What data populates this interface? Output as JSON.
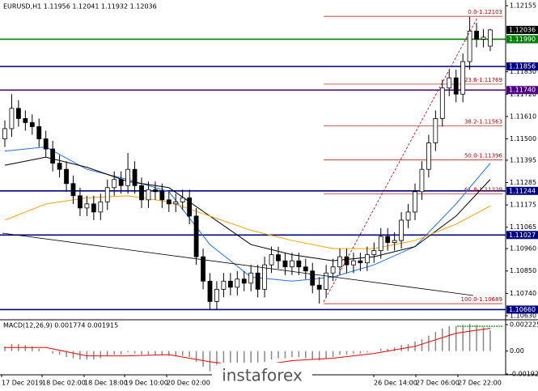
{
  "chart_data": {
    "type": "candlestick",
    "header": "EURUSD,H1 1.11956 1.12041 1.11932 1.12036",
    "ylim": [
      1.1061,
      1.12183
    ],
    "yticks": [
      1.12155,
      {
        "value": 1.1183,
        "label": "1.11830"
      },
      {
        "value": 1.1172,
        "label": "1.11720"
      },
      {
        "value": 1.1161,
        "label": "1.11610"
      },
      {
        "value": 1.115,
        "label": "1.11500"
      },
      1.11395,
      1.11285,
      1.11175,
      1.11065,
      {
        "value": 1.1096,
        "label": "1.10960"
      },
      {
        "value": 1.1085,
        "label": "1.10850"
      },
      {
        "value": 1.1074,
        "label": "1.10740"
      },
      {
        "value": 1.1063,
        "label": "1.10630"
      }
    ],
    "xlabels": [
      "17 Dec 2019",
      "18 Dec 02:00",
      "18 Dec 18:00",
      "19 Dec 10:00",
      "20 Dec 02:00",
      "26 Dec 14:00",
      "27 Dec 06:00",
      "27 Dec 22:00"
    ],
    "open": [
      1.115,
      1.1155,
      1.1165,
      1.116,
      1.1158,
      1.1156,
      1.115,
      1.1145,
      1.1138,
      1.1135,
      1.1128,
      1.1122,
      1.1116,
      1.1118,
      1.1114,
      1.1119,
      1.1126,
      1.113,
      1.1127,
      1.1135,
      1.1127,
      1.112,
      1.1125,
      1.1124,
      1.112,
      1.1118,
      1.1119,
      1.1121,
      1.1112,
      1.1092,
      1.108,
      1.107,
      1.1076,
      1.108,
      1.1077,
      1.1081,
      1.1079,
      1.1084,
      1.1076,
      1.1088,
      1.1093,
      1.109,
      1.1087,
      1.109,
      1.1087,
      1.1085,
      1.1078,
      1.1076,
      1.1084,
      1.1087,
      1.1092,
      1.1088,
      1.109,
      1.1089,
      1.1093,
      1.1095,
      1.1102,
      1.1099,
      1.11,
      1.111,
      1.1114,
      1.1124,
      1.1135,
      1.1148,
      1.116,
      1.1175,
      1.118,
      1.1172,
      1.1188,
      1.1203,
      1.1199,
      1.11956
    ],
    "high": [
      1.1159,
      1.1172,
      1.1169,
      1.1164,
      1.1162,
      1.116,
      1.1154,
      1.1149,
      1.1142,
      1.1139,
      1.1132,
      1.1126,
      1.1122,
      1.1122,
      1.1123,
      1.113,
      1.1134,
      1.1134,
      1.1143,
      1.1139,
      1.1131,
      1.1129,
      1.1129,
      1.1128,
      1.1124,
      1.1123,
      1.1125,
      1.1125,
      1.1116,
      1.1096,
      1.1084,
      1.108,
      1.1084,
      1.1084,
      1.1085,
      1.1085,
      1.1088,
      1.1088,
      1.1092,
      1.1097,
      1.1097,
      1.1094,
      1.1094,
      1.1094,
      1.1091,
      1.1089,
      1.1082,
      1.1088,
      1.1091,
      1.1096,
      1.1096,
      1.1094,
      1.1094,
      1.1097,
      1.1099,
      1.1106,
      1.1106,
      1.1104,
      1.1114,
      1.1118,
      1.1128,
      1.1139,
      1.1152,
      1.1164,
      1.1179,
      1.1184,
      1.1184,
      1.1192,
      1.121,
      1.1207,
      1.1204,
      1.12041
    ],
    "low": [
      1.1146,
      1.1151,
      1.1156,
      1.1154,
      1.1152,
      1.1146,
      1.1141,
      1.1134,
      1.1131,
      1.1124,
      1.1118,
      1.1112,
      1.1112,
      1.111,
      1.111,
      1.1115,
      1.1122,
      1.1123,
      1.1123,
      1.1123,
      1.1116,
      1.1116,
      1.112,
      1.1116,
      1.1114,
      1.1114,
      1.1115,
      1.1108,
      1.1088,
      1.1076,
      1.1066,
      1.1066,
      1.1072,
      1.1073,
      1.1073,
      1.1075,
      1.1075,
      1.1072,
      1.1072,
      1.1084,
      1.1086,
      1.1083,
      1.1083,
      1.1083,
      1.1081,
      1.1074,
      1.1069,
      1.1072,
      1.108,
      1.1083,
      1.1084,
      1.1084,
      1.1085,
      1.1085,
      1.1089,
      1.1091,
      1.1095,
      1.1095,
      1.1096,
      1.1106,
      1.111,
      1.112,
      1.1131,
      1.1144,
      1.1156,
      1.1171,
      1.1168,
      1.1168,
      1.1184,
      1.1195,
      1.1195,
      1.11932
    ],
    "close": [
      1.1155,
      1.1165,
      1.116,
      1.1158,
      1.1156,
      1.115,
      1.1145,
      1.1138,
      1.1135,
      1.1128,
      1.1122,
      1.1116,
      1.1118,
      1.1114,
      1.1119,
      1.1126,
      1.113,
      1.1127,
      1.1135,
      1.1127,
      1.112,
      1.1125,
      1.1124,
      1.112,
      1.1118,
      1.1119,
      1.1121,
      1.1112,
      1.1092,
      1.108,
      1.107,
      1.1076,
      1.108,
      1.1077,
      1.1081,
      1.1079,
      1.1084,
      1.1076,
      1.1088,
      1.1093,
      1.109,
      1.1087,
      1.109,
      1.1087,
      1.1085,
      1.1078,
      1.1076,
      1.1084,
      1.1087,
      1.1092,
      1.1088,
      1.109,
      1.1089,
      1.1093,
      1.1095,
      1.1102,
      1.1099,
      1.11,
      1.111,
      1.1114,
      1.1124,
      1.1135,
      1.1148,
      1.116,
      1.1175,
      1.118,
      1.1172,
      1.1188,
      1.1203,
      1.1199,
      1.12,
      1.12036
    ],
    "moving_averages": [
      {
        "color": "#1e6fff",
        "x": [
          0,
          6,
          12,
          18,
          24,
          30,
          36,
          42,
          48,
          54,
          60,
          66,
          71
        ],
        "values": [
          1.1144,
          1.1146,
          1.1135,
          1.113,
          1.1124,
          1.1098,
          1.1082,
          1.108,
          1.1082,
          1.1088,
          1.1097,
          1.1118,
          1.1138
        ]
      },
      {
        "color": "#000000",
        "x": [
          0,
          6,
          12,
          18,
          24,
          30,
          36,
          42,
          48,
          54,
          60,
          66,
          71
        ],
        "values": [
          1.1137,
          1.1141,
          1.1136,
          1.1129,
          1.1126,
          1.1112,
          1.1098,
          1.1093,
          1.109,
          1.1092,
          1.1097,
          1.1112,
          1.113
        ]
      },
      {
        "color": "#ffa500",
        "x": [
          0,
          6,
          12,
          18,
          24,
          30,
          36,
          42,
          48,
          54,
          60,
          66,
          71
        ],
        "values": [
          1.111,
          1.1118,
          1.1121,
          1.1122,
          1.1119,
          1.1112,
          1.1105,
          1.11,
          1.1096,
          1.1096,
          1.11,
          1.1108,
          1.1117
        ]
      }
    ],
    "levels": [
      {
        "value": 1.1199,
        "label": "1.11990",
        "color": "#008000"
      },
      {
        "value": 1.11856,
        "label": "1.11856",
        "color": "#000080"
      },
      {
        "value": 1.1174,
        "label": "1.11740",
        "color": "#4b0082"
      },
      {
        "value": 1.11244,
        "label": "1.11244",
        "color": "#000080"
      },
      {
        "value": 1.11027,
        "label": "1.11027",
        "color": "#000080"
      },
      {
        "value": 1.1066,
        "label": "1.10660",
        "color": "#000080"
      }
    ],
    "current_price": {
      "value": 1.12036,
      "label": "1.12036"
    },
    "fibo_color": "#c00000",
    "fibo": [
      {
        "value": 1.12103,
        "label": "0.0-1.12103"
      },
      {
        "value": 1.11769,
        "label": "23.6-1.11769"
      },
      {
        "value": 1.11563,
        "label": "38.2-1.11563"
      },
      {
        "value": 1.11396,
        "label": "50.0-1.11396"
      },
      {
        "value": 1.11229,
        "label": "61.8-1.11229"
      },
      {
        "value": 1.10689,
        "label": "100.0-1.10689"
      }
    ],
    "macd": {
      "label": "MACD(12,26,9) 0.001774 0.001915",
      "ylim": [
        -0.001925,
        0.002225
      ],
      "yticks": [
        0.002225,
        {
          "value": 0,
          "label": "0.00"
        },
        -0.001925
      ],
      "values": [
        0.0004,
        0.0006,
        0.0006,
        0.0005,
        0.0004,
        0.0002,
        0.0,
        -0.0002,
        -0.0003,
        -0.0005,
        -0.0006,
        -0.0007,
        -0.0007,
        -0.0007,
        -0.0006,
        -0.0004,
        -0.0003,
        -0.0003,
        -0.0001,
        -0.0002,
        -0.0003,
        -0.0003,
        -0.0003,
        -0.0003,
        -0.0004,
        -0.0004,
        -0.0004,
        -0.0005,
        -0.0009,
        -0.0013,
        -0.0017,
        -0.0017,
        -0.0016,
        -0.0015,
        -0.0014,
        -0.0013,
        -0.0011,
        -0.0011,
        -0.0009,
        -0.0007,
        -0.0006,
        -0.0006,
        -0.0005,
        -0.0005,
        -0.0006,
        -0.0007,
        -0.0008,
        -0.0006,
        -0.0005,
        -0.0003,
        -0.0003,
        -0.0002,
        -0.0002,
        -0.0001,
        0.0,
        0.0002,
        0.0002,
        0.0003,
        0.0005,
        0.0006,
        0.0008,
        0.001,
        0.0013,
        0.0016,
        0.0019,
        0.0021,
        0.0021,
        0.0022,
        0.0023,
        0.0022,
        0.002,
        0.001774
      ],
      "signal_color": "#ff0000",
      "signal_x": [
        0,
        6,
        12,
        18,
        24,
        30,
        36,
        42,
        48,
        54,
        60,
        66,
        71
      ],
      "signal": [
        0.0003,
        0.0003,
        -0.0004,
        -0.0004,
        -0.0003,
        -0.0009,
        -0.0013,
        -0.0008,
        -0.0006,
        -0.0002,
        0.0004,
        0.0015,
        0.001915
      ]
    },
    "watermark": "instaforex"
  }
}
